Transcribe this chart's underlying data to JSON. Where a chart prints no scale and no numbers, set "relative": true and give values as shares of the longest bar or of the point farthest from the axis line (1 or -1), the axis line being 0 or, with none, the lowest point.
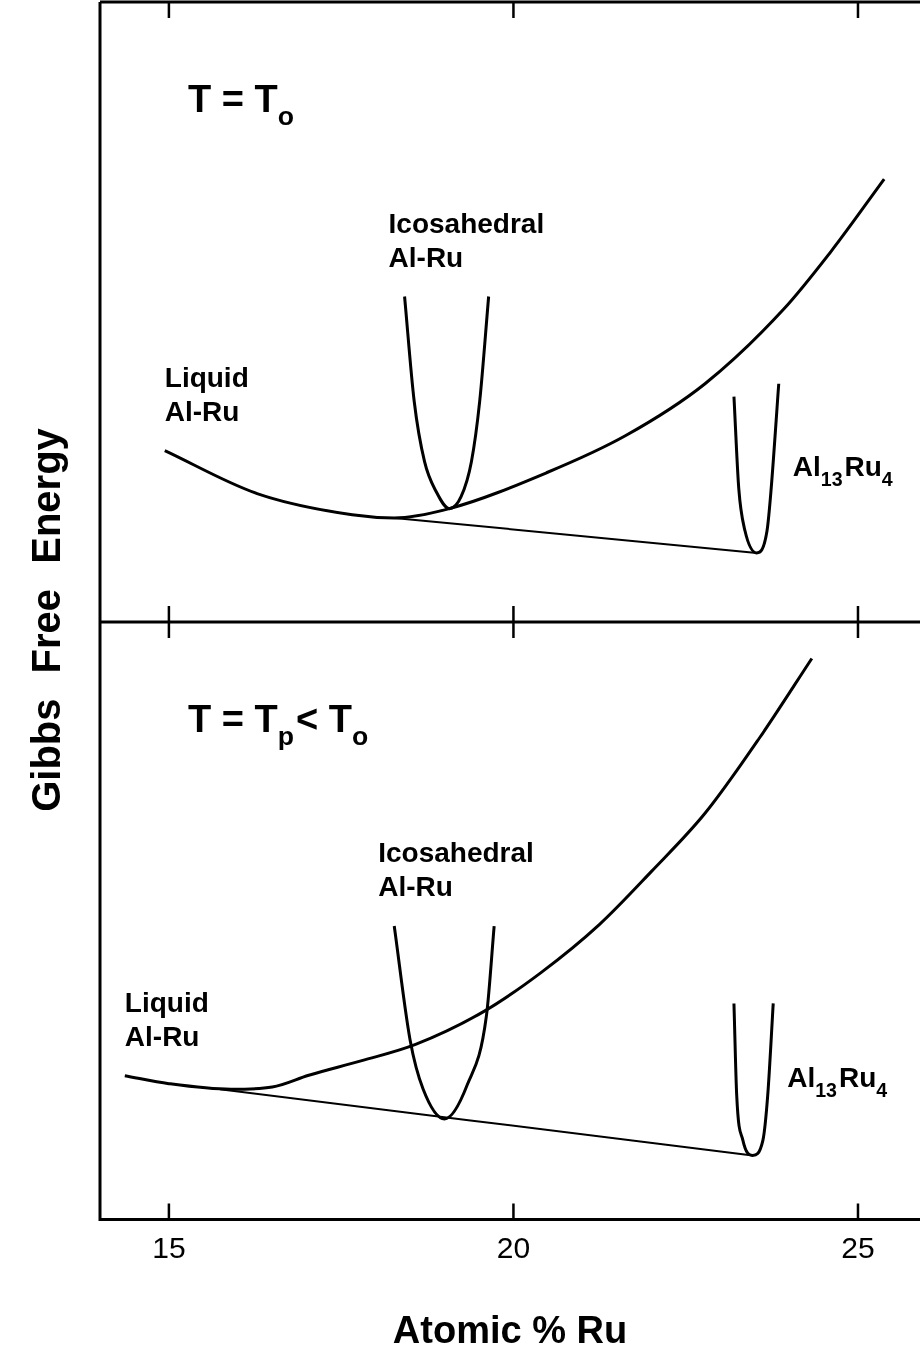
{
  "chart_data": [
    {
      "type": "line",
      "annotations": [
        "T = T$_{o}$"
      ],
      "ylabel": "Gibbs Free Energy",
      "relative": true,
      "xlim": [
        14,
        25.9
      ],
      "xticks": [
        15,
        20,
        25
      ],
      "tick_labels": false,
      "legend": false,
      "grid": false,
      "marker": "none",
      "series": [
        {
          "name": "Liquid Al-Ru",
          "color": "#000000",
          "x": [
            14.94,
            16.28,
            17.66,
            18.27,
            19.07,
            20.48,
            21.63,
            22.78,
            23.92,
            24.61,
            25.38
          ],
          "values": [
            0.387,
            0.29,
            0.242,
            0.235,
            0.256,
            0.337,
            0.421,
            0.538,
            0.706,
            0.837,
            1.0
          ]
        },
        {
          "name": "Icosahedral Al-Ru",
          "color": "#000000",
          "x": [
            18.42,
            18.56,
            18.71,
            18.88,
            19.07,
            19.24,
            19.39,
            19.51,
            19.64
          ],
          "values": [
            0.735,
            0.498,
            0.362,
            0.294,
            0.256,
            0.283,
            0.362,
            0.498,
            0.735
          ]
        },
        {
          "name": "Al$_{13}$Ru$_{4}$",
          "color": "#000000",
          "x": [
            23.2,
            23.27,
            23.36,
            23.53,
            23.68,
            23.74,
            23.85
          ],
          "values": [
            0.509,
            0.301,
            0.206,
            0.156,
            0.206,
            0.301,
            0.538
          ]
        },
        {
          "color": "#000000",
          "x": [
            18.27,
            23.53
          ],
          "values": [
            0.235,
            0.156
          ]
        }
      ]
    },
    {
      "type": "line",
      "annotations": [
        "T = T$_{p}$< T$_{o}$"
      ],
      "xlabel": "Atomic % Ru",
      "relative": true,
      "xlim": [
        14,
        25.9
      ],
      "xticks": [
        15,
        20,
        25
      ],
      "tick_labels": "x",
      "legend": false,
      "grid": false,
      "marker": "none",
      "series": [
        {
          "name": "Liquid Al-Ru",
          "color": "#000000",
          "x": [
            14.36,
            15.0,
            15.9,
            16.5,
            17.03,
            17.8,
            18.58,
            19.56,
            20.4,
            21.25,
            22.0,
            22.78,
            23.58,
            24.33
          ],
          "values": [
            0.256,
            0.242,
            0.232,
            0.236,
            0.257,
            0.283,
            0.312,
            0.37,
            0.44,
            0.526,
            0.62,
            0.724,
            0.86,
            1.0
          ]
        },
        {
          "name": "Icosahedral Al-Ru",
          "color": "#000000",
          "x": [
            18.27,
            18.5,
            18.69,
            19.0,
            19.33,
            19.61,
            19.72
          ],
          "values": [
            0.523,
            0.32,
            0.232,
            0.179,
            0.24,
            0.365,
            0.523
          ]
        },
        {
          "name": "Al$_{13}$Ru$_{4}$",
          "color": "#000000",
          "x": [
            23.2,
            23.24,
            23.33,
            23.47,
            23.62,
            23.69,
            23.77
          ],
          "values": [
            0.385,
            0.221,
            0.141,
            0.114,
            0.141,
            0.221,
            0.385
          ]
        },
        {
          "color": "#000000",
          "x": [
            15.74,
            23.47
          ],
          "values": [
            0.232,
            0.114
          ]
        }
      ]
    }
  ]
}
